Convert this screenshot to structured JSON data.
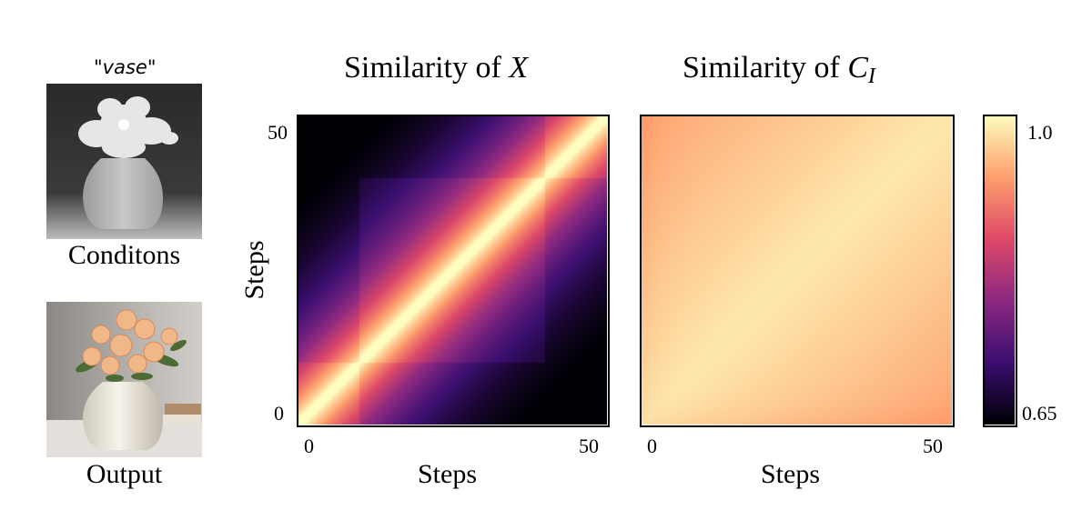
{
  "left_panel": {
    "prompt": "\"vase\"",
    "condition_caption": "Conditons",
    "output_caption": "Output",
    "condition_image": "depth-map-of-vase-with-flowers",
    "output_image": "photo-of-white-vase-with-peach-roses"
  },
  "colormap": {
    "name": "magma",
    "stops": [
      "#000004",
      "#3b0f70",
      "#8c2981",
      "#de4968",
      "#fe9f6d",
      "#fcfdbf"
    ]
  },
  "chart_data": [
    {
      "type": "heatmap",
      "title_prefix": "Similarity of ",
      "title_symbol": "X",
      "title_subscript": "",
      "xlabel": "Steps",
      "ylabel": "Steps",
      "xticks": [
        "0",
        "50"
      ],
      "yticks": [
        "0",
        "50"
      ],
      "xlim": [
        0,
        50
      ],
      "ylim": [
        0,
        50
      ],
      "value_range": [
        0.65,
        1.0
      ],
      "pattern": "block-diagonal similarity; high near diagonal, decays with step distance; step blocks near 10 and 40",
      "corner_values": {
        "near_diagonal": 1.0,
        "far_corner": 0.65
      }
    },
    {
      "type": "heatmap",
      "title_prefix": "Similarity of ",
      "title_symbol": "C",
      "title_subscript": "I",
      "xlabel": "Steps",
      "ylabel": "",
      "xticks": [
        "0",
        "50"
      ],
      "yticks": [],
      "xlim": [
        0,
        50
      ],
      "ylim": [
        0,
        50
      ],
      "value_range": [
        0.65,
        1.0
      ],
      "pattern": "uniformly high similarity across all step pairs",
      "corner_values": {
        "near_diagonal": 1.0,
        "far_corner": 0.9
      }
    }
  ],
  "colorbar": {
    "max_label": "1.0",
    "min_label": "0.65"
  }
}
